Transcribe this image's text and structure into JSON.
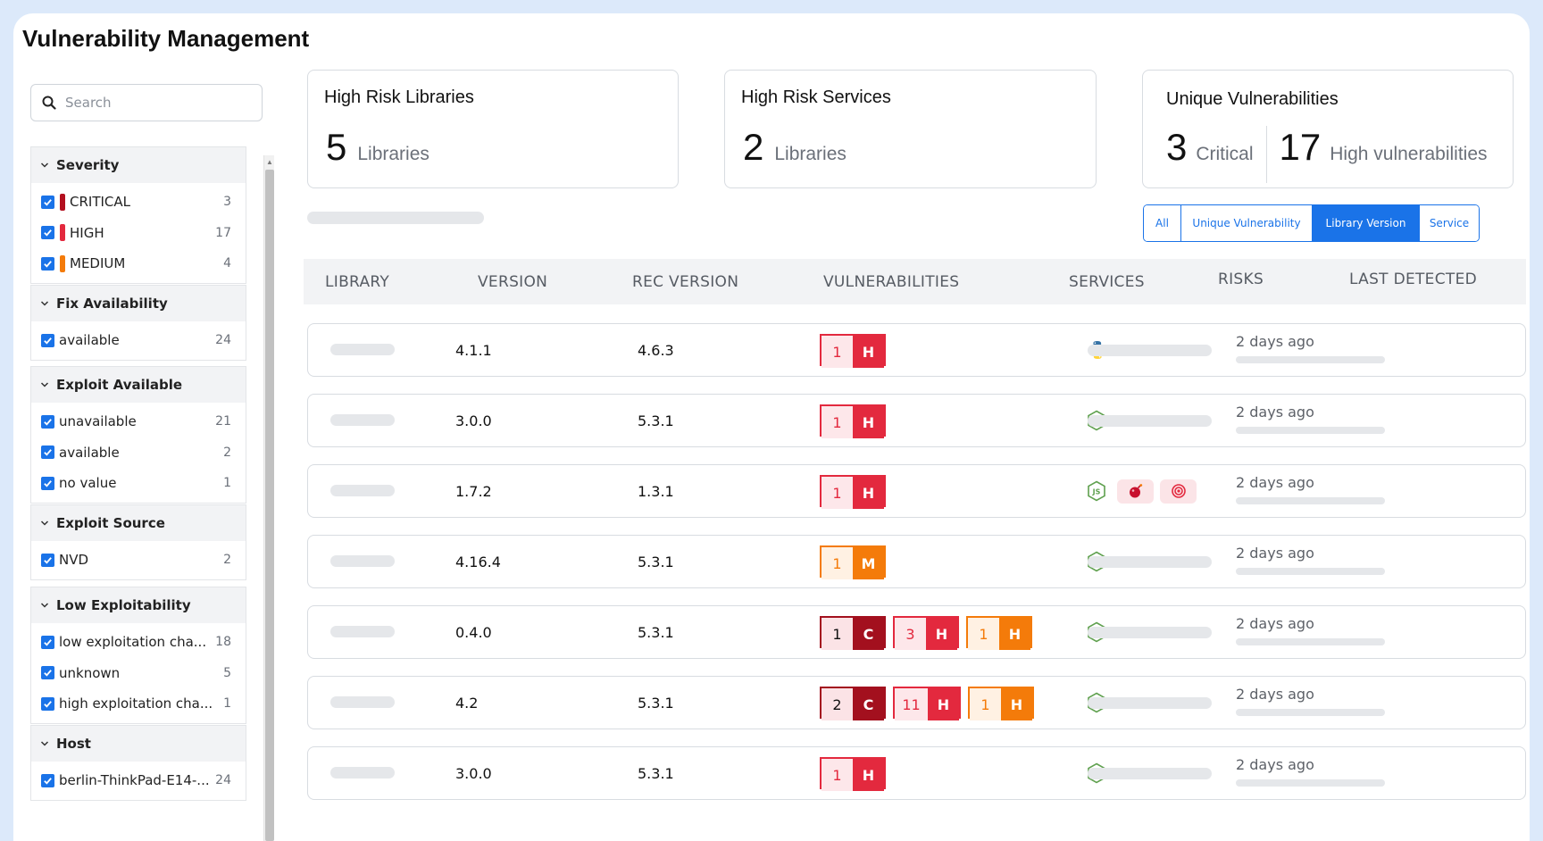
{
  "page_title": "Vulnerability Management",
  "search": {
    "placeholder": "Search"
  },
  "filter_groups": [
    {
      "title": "Severity",
      "items": [
        {
          "label": "CRITICAL",
          "count": "3",
          "color": "#b3101f"
        },
        {
          "label": "HIGH",
          "count": "17",
          "color": "#e3293e"
        },
        {
          "label": "MEDIUM",
          "count": "4",
          "color": "#f47b0a"
        }
      ]
    },
    {
      "title": "Fix Availability",
      "items": [
        {
          "label": "available",
          "count": "24"
        }
      ]
    },
    {
      "title": "Exploit Available",
      "items": [
        {
          "label": "unavailable",
          "count": "21"
        },
        {
          "label": "available",
          "count": "2"
        },
        {
          "label": "no value",
          "count": "1"
        }
      ]
    },
    {
      "title": "Exploit Source",
      "items": [
        {
          "label": "NVD",
          "count": "2"
        }
      ]
    },
    {
      "title": "Low Exploitability",
      "items": [
        {
          "label": "low exploitation cha...",
          "count": "18"
        },
        {
          "label": "unknown",
          "count": "5"
        },
        {
          "label": "high exploitation cha...",
          "count": "1"
        }
      ]
    },
    {
      "title": "Host",
      "items": [
        {
          "label": "berlin-ThinkPad-E14-...",
          "count": "24"
        }
      ]
    }
  ],
  "cards": {
    "libraries": {
      "title": "High Risk Libraries",
      "value": "5",
      "unit": "Libraries"
    },
    "services": {
      "title": "High Risk Services",
      "value": "2",
      "unit": "Libraries"
    },
    "unique": {
      "title": "Unique Vulnerabilities",
      "critical_value": "3",
      "critical_unit": "Critical",
      "high_value": "17",
      "high_unit": "High vulnerabilities"
    }
  },
  "tabs": [
    {
      "label": "All",
      "active": false
    },
    {
      "label": "Unique Vulnerability",
      "active": false
    },
    {
      "label": "Library Version",
      "active": true
    },
    {
      "label": "Service",
      "active": false
    }
  ],
  "table": {
    "headers": {
      "library": "LIBRARY",
      "version": "VERSION",
      "rec_version": "REC VERSION",
      "vulnerabilities": "VULNERABILITIES",
      "services": "SERVICES",
      "risks": "RISKS",
      "last_detected": "LAST DETECTED"
    },
    "rows": [
      {
        "version": "4.1.1",
        "rec_version": "4.6.3",
        "vulns": [
          {
            "count": "1",
            "sev": "H"
          }
        ],
        "service_icon": "python-icon",
        "services": "1",
        "risks": [],
        "last_detected": "2 days ago"
      },
      {
        "version": "3.0.0",
        "rec_version": "5.3.1",
        "vulns": [
          {
            "count": "1",
            "sev": "H"
          }
        ],
        "service_icon": "nodejs-icon",
        "services": "1",
        "risks": [],
        "last_detected": "2 days ago"
      },
      {
        "version": "1.7.2",
        "rec_version": "1.3.1",
        "vulns": [
          {
            "count": "1",
            "sev": "H"
          }
        ],
        "service_icon": "nodejs-icon",
        "services": "1",
        "risks": [
          "bomb-icon",
          "target-icon"
        ],
        "last_detected": "2 days ago"
      },
      {
        "version": "4.16.4",
        "rec_version": "5.3.1",
        "vulns": [
          {
            "count": "1",
            "sev": "M"
          }
        ],
        "service_icon": "nodejs-icon",
        "services": "1",
        "risks": [],
        "last_detected": "2 days ago"
      },
      {
        "version": "0.4.0",
        "rec_version": "5.3.1",
        "vulns": [
          {
            "count": "1",
            "sev": "C"
          },
          {
            "count": "3",
            "sev": "H"
          },
          {
            "count": "1",
            "sev": "H",
            "tone": "orange"
          }
        ],
        "service_icon": "nodejs-icon",
        "services": "1",
        "risks": [],
        "last_detected": "2 days ago"
      },
      {
        "version": "4.2",
        "rec_version": "5.3.1",
        "vulns": [
          {
            "count": "2",
            "sev": "C"
          },
          {
            "count": "11",
            "sev": "H"
          },
          {
            "count": "1",
            "sev": "H",
            "tone": "orange"
          }
        ],
        "service_icon": "nodejs-icon",
        "services": "1",
        "risks": [],
        "last_detected": "2 days ago"
      },
      {
        "version": "3.0.0",
        "rec_version": "5.3.1",
        "vulns": [
          {
            "count": "1",
            "sev": "H"
          }
        ],
        "service_icon": "nodejs-icon",
        "services": "1",
        "risks": [],
        "last_detected": "2 days ago"
      }
    ]
  },
  "colors": {
    "accent": "#1a73e8",
    "critical": "#a3101e",
    "critical_bg": "#fbe3e6",
    "high": "#e3293e",
    "high_bg": "#fde7ea",
    "medium": "#f47b0a",
    "medium_bg": "#fff1e3"
  }
}
